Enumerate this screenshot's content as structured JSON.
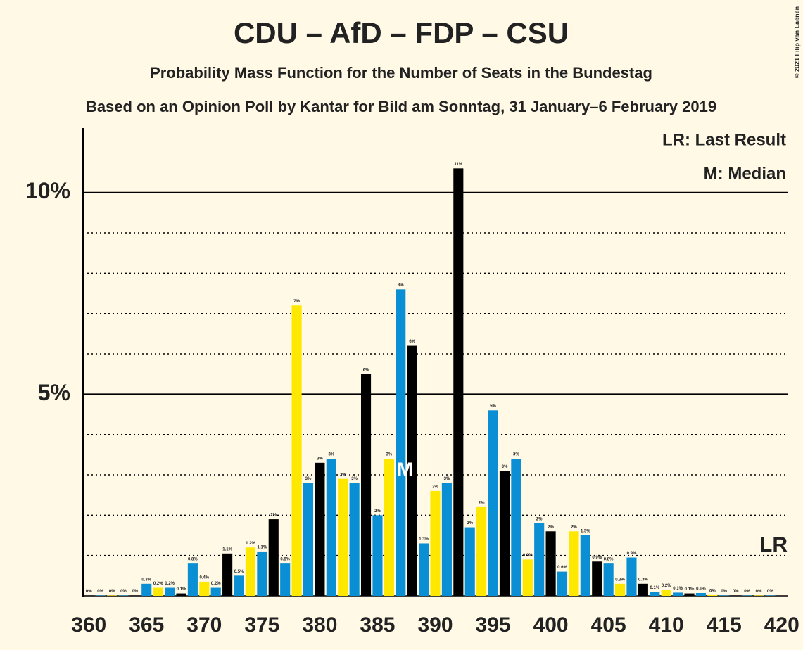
{
  "chart_data": {
    "type": "bar",
    "title": "CDU – AfD – FDP – CSU",
    "subtitle": "Probability Mass Function for the Number of Seats in the Bundestag",
    "subtitle2": "Based on an Opinion Poll by Kantar for Bild am Sonntag, 31 January–6 February 2019",
    "copyright": "© 2021 Filip van Laenen",
    "legend": [
      "LR: Last Result",
      "M: Median"
    ],
    "last_result_label": "LR",
    "median": 388,
    "median_label": "M",
    "x": [
      360,
      361,
      362,
      363,
      364,
      365,
      366,
      367,
      368,
      369,
      370,
      371,
      372,
      373,
      374,
      375,
      376,
      377,
      378,
      379,
      380,
      381,
      382,
      383,
      384,
      385,
      386,
      387,
      388,
      389,
      390,
      391,
      392,
      393,
      394,
      395,
      396,
      397,
      398,
      399,
      400,
      401,
      402,
      403,
      404,
      405,
      406,
      407,
      408,
      409,
      410,
      411,
      412,
      413,
      414,
      415,
      416,
      417,
      418,
      419
    ],
    "values": [
      0.01,
      0.01,
      0.01,
      0.01,
      0.01,
      0.3,
      0.2,
      0.2,
      0.06,
      0.8,
      0.35,
      0.2,
      1.05,
      0.5,
      1.2,
      1.1,
      1.9,
      0.8,
      7.2,
      2.8,
      3.3,
      3.4,
      2.9,
      2.8,
      5.5,
      2.0,
      3.4,
      7.6,
      6.2,
      1.3,
      2.6,
      2.8,
      10.6,
      1.7,
      2.2,
      4.6,
      3.1,
      3.4,
      0.9,
      1.8,
      1.6,
      0.6,
      1.6,
      1.5,
      0.85,
      0.8,
      0.3,
      0.95,
      0.3,
      0.1,
      0.15,
      0.08,
      0.06,
      0.07,
      0.02,
      0.01,
      0.01,
      0.01,
      0.01,
      0.01
    ],
    "value_labels": [
      "0%",
      "0%",
      "0%",
      "0%",
      "0%",
      "0.3%",
      "0.2%",
      "0.2%",
      "0.1%",
      "0.8%",
      "0.4%",
      "0.2%",
      "1.1%",
      "0.5%",
      "1.2%",
      "1.1%",
      "2%",
      "0.8%",
      "7%",
      "3%",
      "3%",
      "3%",
      "3%",
      "3%",
      "6%",
      "2%",
      "3%",
      "8%",
      "6%",
      "1.3%",
      "3%",
      "3%",
      "11%",
      "2%",
      "2%",
      "5%",
      "3%",
      "3%",
      "0.9%",
      "2%",
      "2%",
      "0.6%",
      "2%",
      "1.5%",
      "0.9%",
      "0.8%",
      "0.3%",
      "0.9%",
      "0.3%",
      "0.1%",
      "0.2%",
      "0.1%",
      "0.1%",
      "0.1%",
      "0%",
      "0%",
      "0%",
      "0%",
      "0%",
      "0%"
    ],
    "color_cycle": [
      "#000000",
      "#0a8fd4",
      "#ffe800",
      "#0a8fd4"
    ],
    "xlim": [
      359.5,
      420.5
    ],
    "xticks": [
      360,
      365,
      370,
      375,
      380,
      385,
      390,
      395,
      400,
      405,
      410,
      415,
      420
    ],
    "ylim": [
      0,
      11.6
    ],
    "yticks": [
      {
        "value": 5,
        "label": "5%"
      },
      {
        "value": 10,
        "label": "10%"
      }
    ],
    "minor_yticks": [
      1,
      2,
      3,
      4,
      6,
      7,
      8,
      9
    ],
    "grid": true
  }
}
